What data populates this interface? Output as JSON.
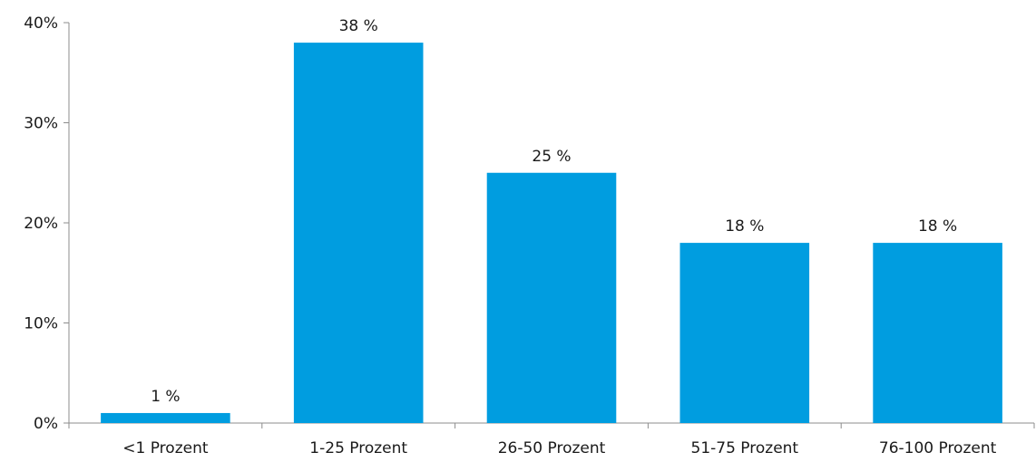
{
  "chart_data": {
    "type": "bar",
    "categories": [
      "<1 Prozent",
      "1-25 Prozent",
      "26-50 Prozent",
      "51-75 Prozent",
      "76-100 Prozent"
    ],
    "values": [
      1,
      38,
      25,
      18,
      18
    ],
    "data_labels": [
      "1 %",
      "38 %",
      "25 %",
      "18 %",
      "18 %"
    ],
    "title": "",
    "xlabel": "",
    "ylabel": "",
    "ylim": [
      0,
      40
    ],
    "yticks": [
      0,
      10,
      20,
      30,
      40
    ],
    "ytick_labels": [
      "0%",
      "10%",
      "20%",
      "30%",
      "40%"
    ],
    "grid": false,
    "legend": "none",
    "bar_color": "#009de0"
  }
}
